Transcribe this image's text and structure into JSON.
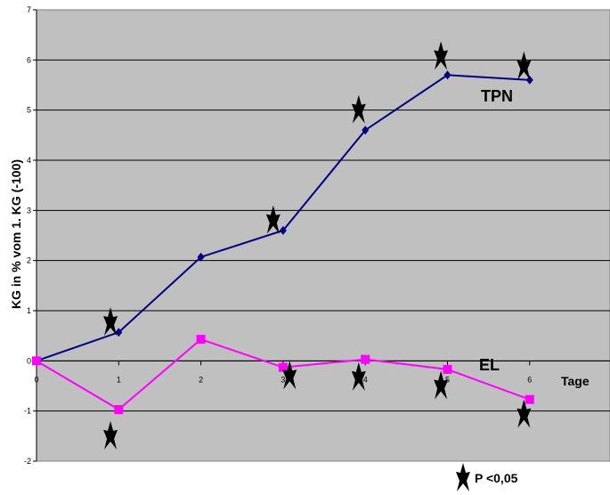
{
  "chart_data": {
    "type": "line",
    "ylabel": "KG in % vom 1. KG (-100)",
    "xlabel": "Tage",
    "xlim": [
      0,
      6
    ],
    "ylim": [
      -2,
      7
    ],
    "x_ticks": [
      "0",
      "1",
      "2",
      "3",
      "4",
      "5",
      "6"
    ],
    "y_ticks": [
      "-2",
      "-1",
      "0",
      "1",
      "2",
      "3",
      "4",
      "5",
      "6",
      "7"
    ],
    "grid": "horizontal",
    "background_color": "#c0c0c0",
    "series": [
      {
        "name": "TPN",
        "color": "#000080",
        "marker": "diamond",
        "x": [
          0,
          1,
          2,
          3,
          4,
          5,
          6
        ],
        "y": [
          0,
          0.57,
          2.07,
          2.6,
          4.6,
          5.7,
          5.6
        ]
      },
      {
        "name": "EL",
        "color": "#ff00ff",
        "marker": "square",
        "x": [
          0,
          1,
          2,
          3,
          4,
          5,
          6
        ],
        "y": [
          0,
          -0.97,
          0.43,
          -0.13,
          0.03,
          -0.17,
          -0.77
        ]
      }
    ],
    "significance_markers": [
      {
        "x": 0.9,
        "y": 0.77
      },
      {
        "x": 0.9,
        "y": -1.5
      },
      {
        "x": 2.88,
        "y": 2.8
      },
      {
        "x": 3.08,
        "y": -0.3
      },
      {
        "x": 3.92,
        "y": 5.0
      },
      {
        "x": 3.92,
        "y": -0.33
      },
      {
        "x": 4.92,
        "y": 6.07
      },
      {
        "x": 4.92,
        "y": -0.5
      },
      {
        "x": 5.93,
        "y": 5.87
      },
      {
        "x": 5.93,
        "y": -1.07
      }
    ],
    "legend": {
      "symbol": "star",
      "label": "P <0,05"
    }
  }
}
